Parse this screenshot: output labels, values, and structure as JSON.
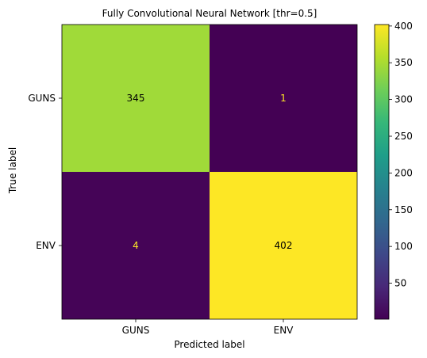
{
  "chart_data": {
    "type": "heatmap",
    "title": "Fully Convolutional Neural Network [thr=0.5]",
    "xlabel": "Predicted label",
    "ylabel": "True label",
    "x_categories": [
      "GUNS",
      "ENV"
    ],
    "y_categories": [
      "GUNS",
      "ENV"
    ],
    "values": [
      [
        345,
        1
      ],
      [
        4,
        402
      ]
    ],
    "colormap": "viridis",
    "colorbar": {
      "range": [
        1,
        402
      ],
      "ticks": [
        50,
        100,
        150,
        200,
        250,
        300,
        350,
        400
      ]
    },
    "cell_colors": {
      "345": "#a0da39",
      "1": "#440154",
      "4": "#450457",
      "402": "#fde725"
    },
    "text_colors": {
      "dark_background": "#fde725",
      "light_background": "#000000"
    }
  }
}
